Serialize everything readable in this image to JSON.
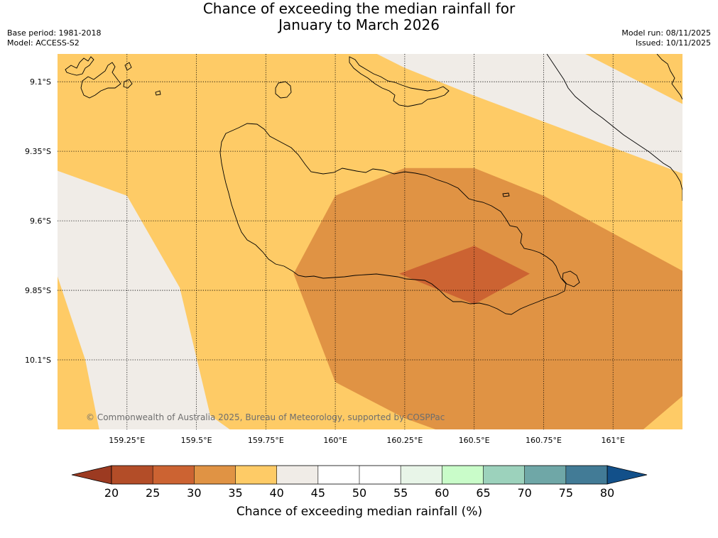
{
  "title": {
    "line1": "Chance of exceeding the median rainfall for",
    "line2": "January to March 2026"
  },
  "meta_left": {
    "base_period": "Base period: 1981-2018",
    "model": "Model: ACCESS-S2"
  },
  "meta_right": {
    "model_run": "Model run: 08/11/2025",
    "issued": "Issued: 10/11/2025"
  },
  "copyright": "© Commonwealth of Australia 2025, Bureau of Meteorology, supported by COSPPac",
  "colors": {
    "bin_40_45": "#f0ece7",
    "bin_35_40": "#fecb66",
    "bin_30_35": "#e09344",
    "bin_25_30": "#cc6332",
    "land_outline": "#000000"
  },
  "chart_data": {
    "type": "heatmap",
    "title": "Chance of exceeding the median rainfall for January to March 2026",
    "lon_range": [
      159.0,
      161.25
    ],
    "lat_range": [
      -10.35,
      -9.0
    ],
    "lon_ticks": [
      "159.25°E",
      "159.5°E",
      "159.75°E",
      "160°E",
      "160.25°E",
      "160.5°E",
      "160.75°E",
      "161°E"
    ],
    "lat_ticks": [
      "9.1°S",
      "9.35°S",
      "9.6°S",
      "9.85°S",
      "10.1°S"
    ],
    "grid": true,
    "regions": [
      {
        "name": "40-45% northeast",
        "range": [
          40,
          45
        ],
        "lonlat": [
          [
            160.15,
            -9.0
          ],
          [
            160.9,
            -9.0
          ],
          [
            161.25,
            -9.18
          ],
          [
            161.25,
            -9.43
          ],
          [
            160.5,
            -9.15
          ],
          [
            160.25,
            -9.05
          ]
        ]
      },
      {
        "name": "40-45% southwest",
        "range": [
          40,
          45
        ],
        "lonlat": [
          [
            159.0,
            -9.42
          ],
          [
            159.25,
            -9.51
          ],
          [
            159.44,
            -9.84
          ],
          [
            159.55,
            -10.3
          ],
          [
            159.62,
            -10.35
          ],
          [
            159.15,
            -10.35
          ],
          [
            159.1,
            -10.1
          ],
          [
            159.0,
            -9.8
          ]
        ]
      },
      {
        "name": "30-35% central",
        "range": [
          30,
          35
        ],
        "lonlat": [
          [
            160.0,
            -9.51
          ],
          [
            160.25,
            -9.41
          ],
          [
            160.5,
            -9.41
          ],
          [
            160.75,
            -9.51
          ],
          [
            161.25,
            -9.78
          ],
          [
            161.25,
            -10.23
          ],
          [
            161.05,
            -10.4
          ],
          [
            160.5,
            -10.4
          ],
          [
            160.25,
            -10.31
          ],
          [
            160.0,
            -10.18
          ],
          [
            159.85,
            -9.79
          ]
        ]
      },
      {
        "name": "25-30% core",
        "range": [
          25,
          30
        ],
        "lonlat": [
          [
            160.5,
            -9.69
          ],
          [
            160.7,
            -9.79
          ],
          [
            160.5,
            -9.9
          ],
          [
            160.23,
            -9.79
          ]
        ]
      }
    ],
    "colorbar": {
      "label": "Chance of exceeding median rainfall (%)",
      "ticks": [
        20,
        25,
        30,
        35,
        40,
        45,
        50,
        55,
        60,
        65,
        70,
        75,
        80
      ],
      "colors": [
        "#b34d28",
        "#cc6332",
        "#e09344",
        "#fecb66",
        "#f0ece7",
        "#ffffff",
        "#ffffff",
        "#e8f5e8",
        "#c9fcc9",
        "#9cd2bc",
        "#6fa7a7",
        "#427b96"
      ],
      "under_color": "#9c3a21",
      "over_color": "#12508a"
    }
  }
}
